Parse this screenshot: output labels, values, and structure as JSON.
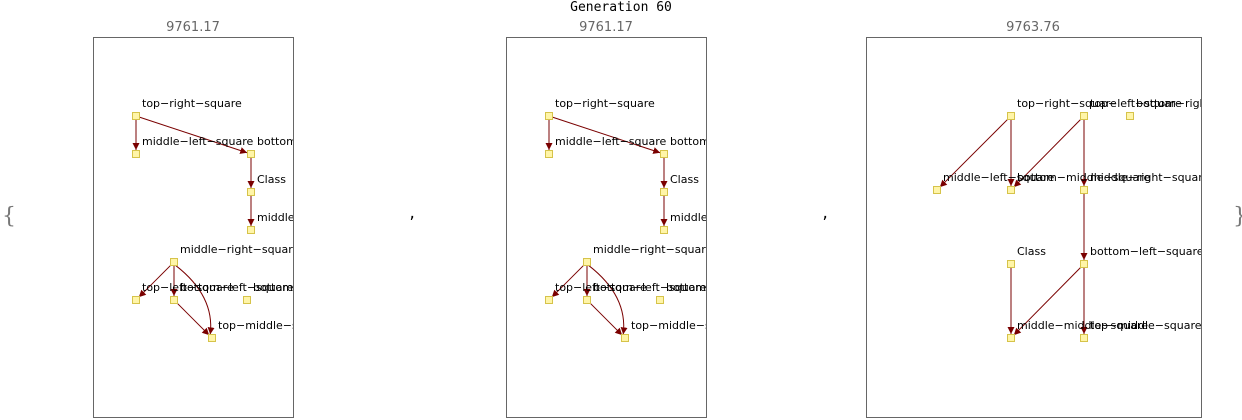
{
  "header": {
    "title": "Generation 60"
  },
  "list": {
    "open_brace": "{",
    "close_brace": "}",
    "separator": ","
  },
  "panels": [
    {
      "score": "9761.17",
      "nodes": [
        {
          "id": "trs",
          "label": "top−right−square"
        },
        {
          "id": "mls",
          "label": "middle−left−square"
        },
        {
          "id": "bms",
          "label": "bottom−middle−square"
        },
        {
          "id": "cls",
          "label": "Class"
        },
        {
          "id": "mms",
          "label": "middle−middle−square"
        },
        {
          "id": "mrs",
          "label": "middle−right−square"
        },
        {
          "id": "tls",
          "label": "top−left−square"
        },
        {
          "id": "bls",
          "label": "bottom−left−square"
        },
        {
          "id": "brs",
          "label": "bottom−right−square"
        },
        {
          "id": "tms",
          "label": "top−middle−square"
        }
      ],
      "edges": [
        {
          "from": "trs",
          "to": "mls"
        },
        {
          "from": "trs",
          "to": "bms"
        },
        {
          "from": "bms",
          "to": "cls"
        },
        {
          "from": "cls",
          "to": "mms"
        },
        {
          "from": "mrs",
          "to": "tls"
        },
        {
          "from": "mrs",
          "to": "bls"
        },
        {
          "from": "mrs",
          "to": "tms"
        },
        {
          "from": "bls",
          "to": "tms"
        }
      ]
    },
    {
      "score": "9761.17",
      "nodes": [
        {
          "id": "trs",
          "label": "top−right−square"
        },
        {
          "id": "mls",
          "label": "middle−left−square"
        },
        {
          "id": "bms",
          "label": "bottom−middle−square"
        },
        {
          "id": "cls",
          "label": "Class"
        },
        {
          "id": "mms",
          "label": "middle−middle−square"
        },
        {
          "id": "mrs",
          "label": "middle−right−square"
        },
        {
          "id": "tls",
          "label": "top−left−square"
        },
        {
          "id": "bls",
          "label": "bottom−left−square"
        },
        {
          "id": "brs",
          "label": "bottom−right−square"
        },
        {
          "id": "tms",
          "label": "top−middle−square"
        }
      ],
      "edges": [
        {
          "from": "trs",
          "to": "mls"
        },
        {
          "from": "trs",
          "to": "bms"
        },
        {
          "from": "bms",
          "to": "cls"
        },
        {
          "from": "cls",
          "to": "mms"
        },
        {
          "from": "mrs",
          "to": "tls"
        },
        {
          "from": "mrs",
          "to": "bls"
        },
        {
          "from": "mrs",
          "to": "tms"
        },
        {
          "from": "bls",
          "to": "tms"
        }
      ]
    },
    {
      "score": "9763.76",
      "nodes": [
        {
          "id": "trs",
          "label": "top−right−square"
        },
        {
          "id": "tls",
          "label": "top−left−square"
        },
        {
          "id": "brs",
          "label": "bottom−right−square"
        },
        {
          "id": "mls",
          "label": "middle−left−square"
        },
        {
          "id": "bms",
          "label": "bottom−middle−square"
        },
        {
          "id": "mrs",
          "label": "middle−right−square"
        },
        {
          "id": "cls",
          "label": "Class"
        },
        {
          "id": "bls",
          "label": "bottom−left−square"
        },
        {
          "id": "mms",
          "label": "middle−middle−square"
        },
        {
          "id": "tms",
          "label": "top−middle−square"
        }
      ],
      "edges": [
        {
          "from": "trs",
          "to": "mls"
        },
        {
          "from": "trs",
          "to": "bms"
        },
        {
          "from": "tls",
          "to": "bms"
        },
        {
          "from": "tls",
          "to": "mrs"
        },
        {
          "from": "mrs",
          "to": "bls"
        },
        {
          "from": "cls",
          "to": "mms"
        },
        {
          "from": "bls",
          "to": "mms"
        },
        {
          "from": "bls",
          "to": "tms"
        }
      ]
    }
  ],
  "colors": {
    "edge": "#7a0000",
    "node_fill": "#fff5a8",
    "node_stroke": "#d6c34a",
    "frame": "#666666"
  }
}
